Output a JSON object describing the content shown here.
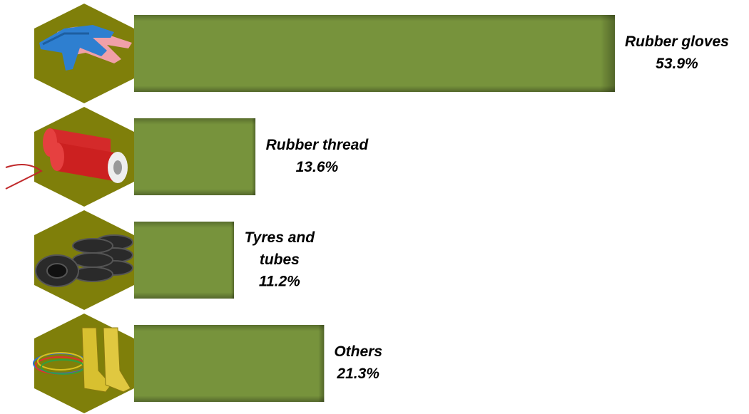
{
  "chart_data": {
    "type": "bar",
    "orientation": "horizontal",
    "categories": [
      "Rubber gloves",
      "Rubber thread",
      "Tyres and tubes",
      "Others"
    ],
    "values": [
      53.9,
      13.6,
      11.2,
      21.3
    ],
    "value_labels": [
      "53.9%",
      "13.6%",
      "11.2%",
      "21.3%"
    ],
    "color": "#77933c"
  }
}
